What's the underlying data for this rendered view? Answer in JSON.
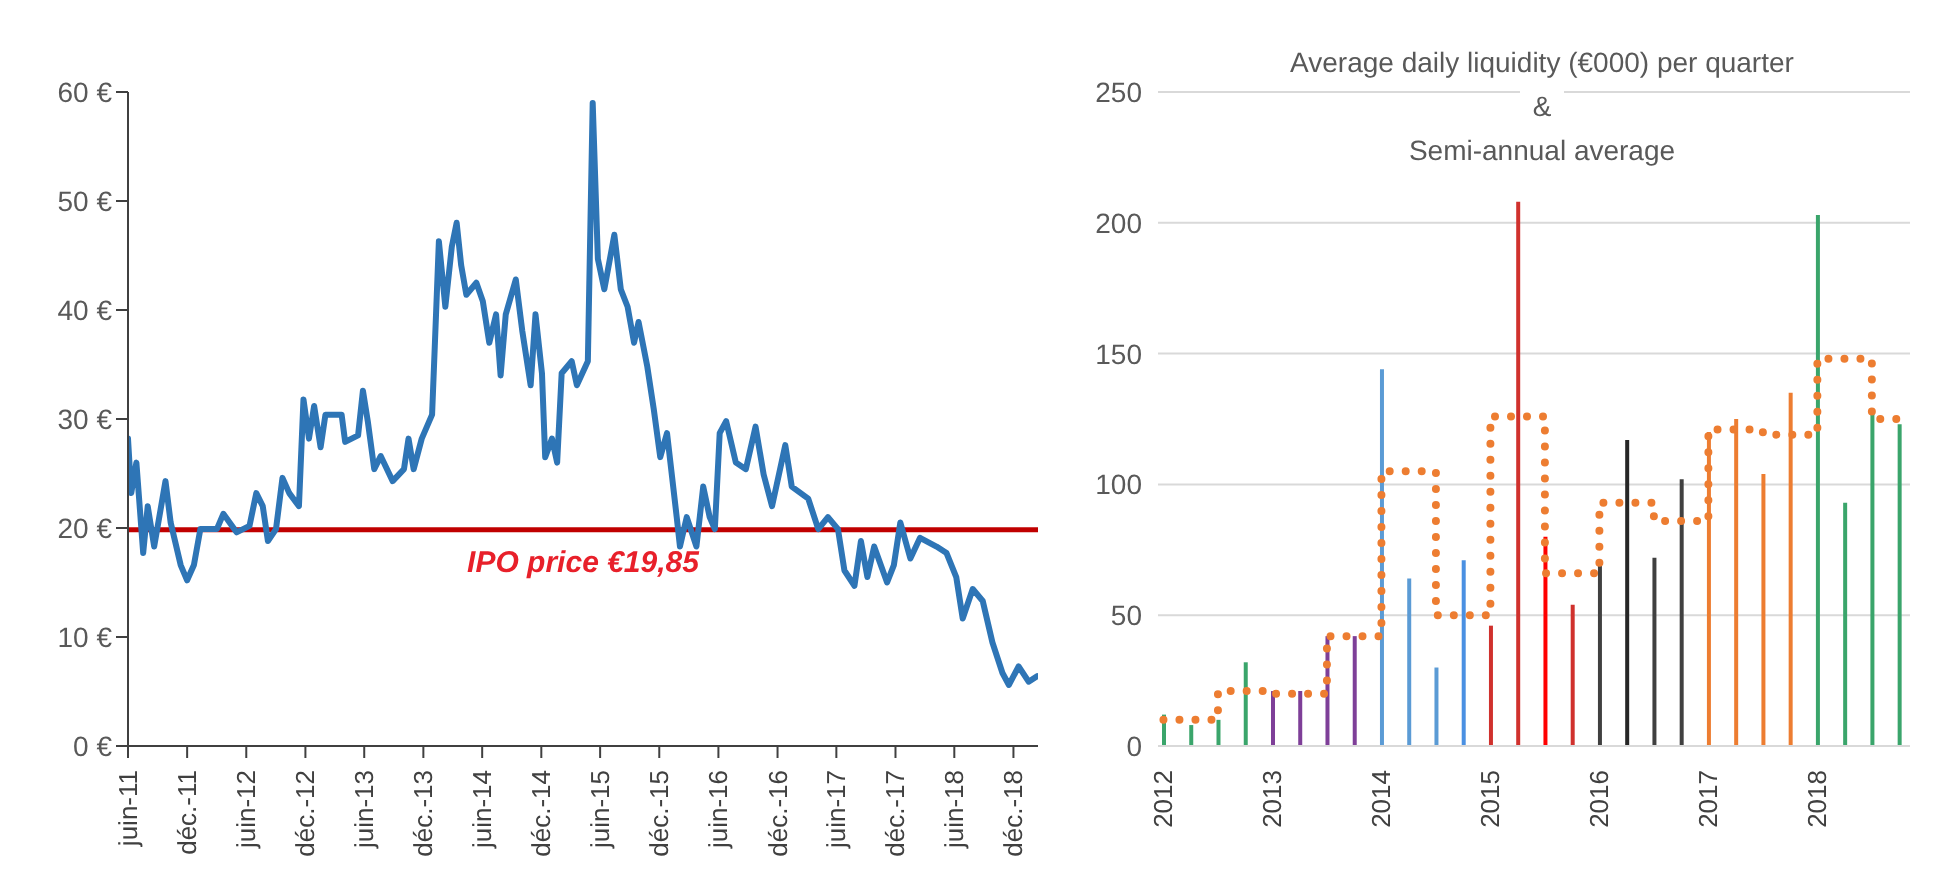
{
  "chart_data": [
    {
      "type": "line",
      "x": [
        "2011-06-01",
        "2011-06-11",
        "2011-06-27",
        "2011-07-18",
        "2011-08-01",
        "2011-08-21",
        "2011-09-25",
        "2011-10-11",
        "2011-11-11",
        "2011-12-01",
        "2011-12-22",
        "2012-01-11",
        "2012-03-02",
        "2012-03-22",
        "2012-05-02",
        "2012-06-11",
        "2012-07-02",
        "2012-07-22",
        "2012-08-07",
        "2012-09-01",
        "2012-09-21",
        "2012-10-12",
        "2012-11-11",
        "2012-11-25",
        "2012-12-12",
        "2012-12-28",
        "2013-01-17",
        "2013-02-01",
        "2013-03-23",
        "2013-04-03",
        "2013-05-13",
        "2013-05-28",
        "2013-06-12",
        "2013-07-02",
        "2013-07-22",
        "2013-08-28",
        "2013-10-02",
        "2013-10-16",
        "2013-11-01",
        "2013-11-26",
        "2013-12-28",
        "2014-01-05",
        "2014-01-18",
        "2014-02-07",
        "2014-02-27",
        "2014-03-14",
        "2014-03-28",
        "2014-04-13",
        "2014-05-14",
        "2014-06-03",
        "2014-06-23",
        "2014-07-14",
        "2014-07-28",
        "2014-08-13",
        "2014-09-13",
        "2014-10-03",
        "2014-10-29",
        "2014-11-13",
        "2014-12-03",
        "2014-12-13",
        "2015-01-03",
        "2015-01-19",
        "2015-02-02",
        "2015-03-05",
        "2015-03-21",
        "2015-04-24",
        "2015-05-09",
        "2015-05-25",
        "2015-06-14",
        "2015-07-15",
        "2015-08-04",
        "2015-08-25",
        "2015-09-14",
        "2015-09-28",
        "2015-10-25",
        "2015-11-14",
        "2015-12-04",
        "2015-12-25",
        "2016-01-24",
        "2016-02-03",
        "2016-02-24",
        "2016-03-25",
        "2016-04-15",
        "2016-05-05",
        "2016-05-21",
        "2016-06-05",
        "2016-06-25",
        "2016-07-25",
        "2016-08-25",
        "2016-09-24",
        "2016-10-19",
        "2016-11-14",
        "2016-12-25",
        "2017-01-14",
        "2017-03-06",
        "2017-04-06",
        "2017-05-06",
        "2017-06-06",
        "2017-06-26",
        "2017-07-27",
        "2017-08-16",
        "2017-09-05",
        "2017-09-26",
        "2017-11-05",
        "2017-11-26",
        "2017-12-16",
        "2018-01-16",
        "2018-02-15",
        "2018-04-07",
        "2018-05-08",
        "2018-06-07",
        "2018-06-27",
        "2018-07-28",
        "2018-08-28",
        "2018-09-27",
        "2018-10-28",
        "2018-11-17",
        "2018-12-17",
        "2019-01-17",
        "2019-02-12"
      ],
      "series": [
        {
          "color": "#2e75b6",
          "values": [
            28.2,
            23.2,
            26,
            17.7,
            22,
            18.3,
            24.3,
            20.5,
            16.6,
            15.2,
            16.6,
            19.9,
            19.9,
            21.3,
            19.6,
            20.2,
            23.2,
            22,
            18.8,
            19.9,
            24.6,
            23.2,
            22,
            31.8,
            28.2,
            31.2,
            27.4,
            30.4,
            30.4,
            27.9,
            28.5,
            32.6,
            29.8,
            25.4,
            26.6,
            24.3,
            25.4,
            28.2,
            25.4,
            28.2,
            30.4,
            36.4,
            46.3,
            40.3,
            45.8,
            48,
            44.1,
            41.4,
            42.5,
            40.8,
            37,
            39.6,
            34,
            39.6,
            42.8,
            38.1,
            33.1,
            39.6,
            34.2,
            26.5,
            28.2,
            26,
            34.2,
            35.3,
            33.1,
            35.3,
            59,
            44.7,
            41.9,
            46.9,
            41.9,
            40.3,
            37,
            38.9,
            34.8,
            30.9,
            26.5,
            28.7,
            21,
            18.3,
            21,
            18.3,
            23.8,
            21,
            19.9,
            28.7,
            29.8,
            26,
            25.4,
            29.3,
            24.9,
            22,
            27.6,
            23.8,
            22.7,
            19.9,
            21,
            19.9,
            16.1,
            14.7,
            18.8,
            15.5,
            18.3,
            15,
            16.6,
            20.5,
            17.2,
            19.1,
            18.3,
            17.7,
            15.5,
            11.7,
            14.4,
            13.3,
            9.5,
            6.7,
            5.6,
            7.3,
            5.9,
            6.4
          ]
        }
      ],
      "xlim": [
        "2011-06-01",
        "2019-02-15"
      ],
      "xticks": [
        {
          "value": "2011-06-01",
          "label": "juin-11"
        },
        {
          "value": "2011-12-01",
          "label": "déc.-11"
        },
        {
          "value": "2012-06-01",
          "label": "juin-12"
        },
        {
          "value": "2012-12-01",
          "label": "déc.-12"
        },
        {
          "value": "2013-06-01",
          "label": "juin-13"
        },
        {
          "value": "2013-12-01",
          "label": "déc.-13"
        },
        {
          "value": "2014-06-01",
          "label": "juin-14"
        },
        {
          "value": "2014-12-01",
          "label": "déc.-14"
        },
        {
          "value": "2015-06-01",
          "label": "juin-15"
        },
        {
          "value": "2015-12-01",
          "label": "déc.-15"
        },
        {
          "value": "2016-06-01",
          "label": "juin-16"
        },
        {
          "value": "2016-12-01",
          "label": "déc.-16"
        },
        {
          "value": "2017-06-01",
          "label": "juin-17"
        },
        {
          "value": "2017-12-01",
          "label": "déc.-17"
        },
        {
          "value": "2018-06-01",
          "label": "juin-18"
        },
        {
          "value": "2018-12-01",
          "label": "déc.-18"
        }
      ],
      "ylim": [
        0,
        60
      ],
      "yticks": [
        {
          "value": 0,
          "label": "0 €"
        },
        {
          "value": 10,
          "label": "10 €"
        },
        {
          "value": 20,
          "label": "20 €"
        },
        {
          "value": 30,
          "label": "30 €"
        },
        {
          "value": 40,
          "label": "40 €"
        },
        {
          "value": 50,
          "label": "50 €"
        },
        {
          "value": 60,
          "label": "60 €"
        }
      ],
      "ref_lines": [
        {
          "axis": "y",
          "value": 19.85,
          "label": "IPO price €19,85",
          "color": "#c00000"
        }
      ]
    },
    {
      "type": "bar",
      "title": "Average daily liquidity (€000) per quarter\n&\nSemi-annual average",
      "x": [
        2012,
        2012.25,
        2012.5,
        2012.75,
        2013,
        2013.25,
        2013.5,
        2013.75,
        2014,
        2014.25,
        2014.5,
        2014.75,
        2015,
        2015.25,
        2015.5,
        2015.75,
        2016,
        2016.25,
        2016.5,
        2016.75,
        2017,
        2017.25,
        2017.5,
        2017.75,
        2018,
        2018.25,
        2018.5,
        2018.75
      ],
      "series": [
        {
          "values": [
            12,
            8,
            10,
            32,
            21,
            21,
            42,
            42,
            144,
            64,
            30,
            71,
            46,
            208,
            80,
            54,
            69,
            117,
            72,
            102,
            120,
            125,
            104,
            135,
            203,
            93,
            127,
            123
          ],
          "colors": [
            "#3aa56b",
            "#3aa56b",
            "#3aa56b",
            "#3aa56b",
            "#7e3f98",
            "#7e3f98",
            "#7e3f98",
            "#7e3f98",
            "#5b9bd5",
            "#5b9bd5",
            "#5b9bd5",
            "#4a90e2",
            "#d0312d",
            "#d0312d",
            "#ff0000",
            "#d0312d",
            "#404040",
            "#262626",
            "#404040",
            "#404040",
            "#ed7d31",
            "#ed7d31",
            "#ed7d31",
            "#ed7d31",
            "#3aa56b",
            "#3aa56b",
            "#3aa56b",
            "#3aa56b"
          ]
        },
        {
          "type": "step",
          "x": [
            2012,
            2012.5,
            2013,
            2013.5,
            2014,
            2014.5,
            2015,
            2015.5,
            2016,
            2016.5,
            2017,
            2017.5,
            2018,
            2018.5,
            2018.85
          ],
          "values": [
            10,
            21,
            20,
            42,
            105,
            50,
            126,
            66,
            93,
            86,
            121,
            119,
            148,
            125,
            125
          ],
          "color": "#ed7d31",
          "line_style": "dotted",
          "marker": "none"
        }
      ],
      "xlim": [
        2011.95,
        2018.85
      ],
      "xticks": [
        2012,
        2013,
        2014,
        2015,
        2016,
        2017,
        2018
      ],
      "ylim": [
        0,
        250
      ],
      "yticks": [
        0,
        50,
        100,
        150,
        200,
        250
      ],
      "grid": "y"
    }
  ]
}
